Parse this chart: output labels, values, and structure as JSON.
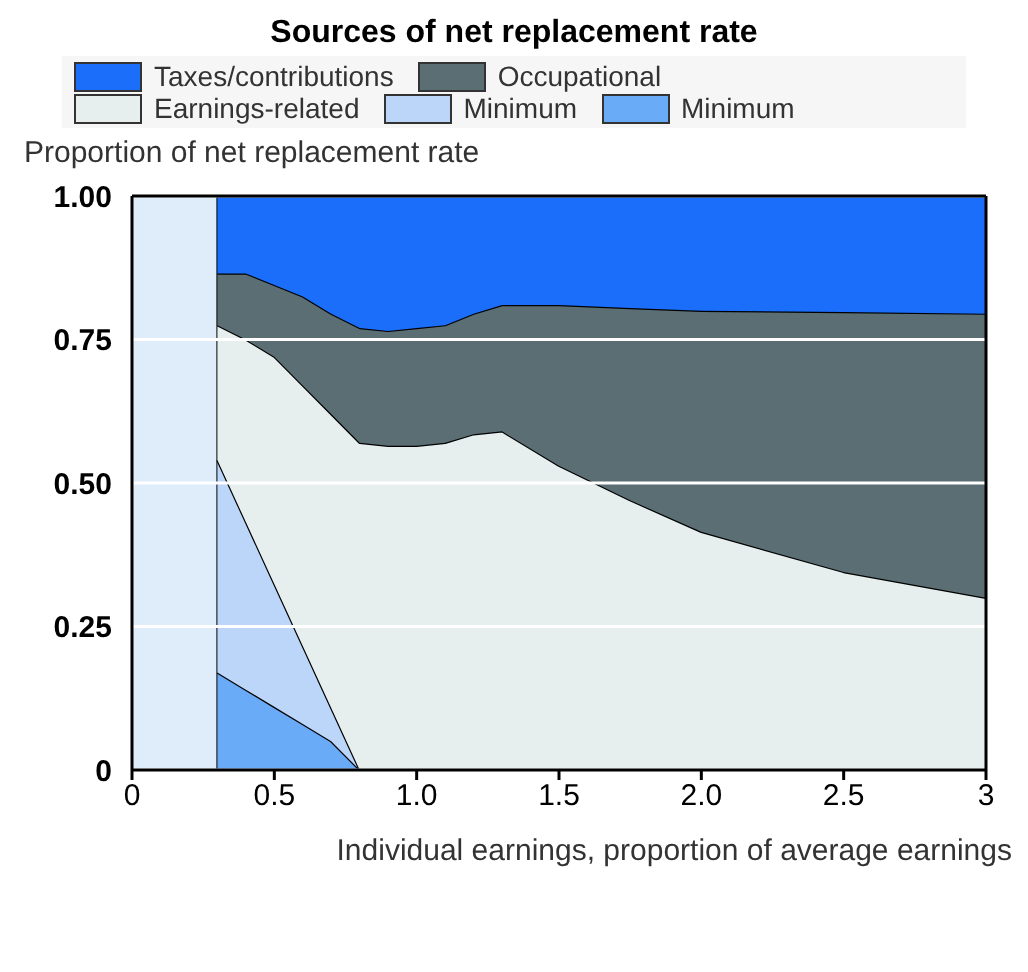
{
  "chart_data": {
    "type": "area",
    "stacked": true,
    "title": "Sources of net replacement rate",
    "ylabel": "Proportion of net replacement rate",
    "xlabel": "Individual earnings, proportion of average earnings",
    "x": [
      0.3,
      0.4,
      0.5,
      0.6,
      0.7,
      0.8,
      0.9,
      1.0,
      1.1,
      1.2,
      1.3,
      1.5,
      1.75,
      2.0,
      2.5,
      3.0
    ],
    "series": [
      {
        "name": "Minimum",
        "color": "#6aabf8",
        "values": [
          0.17,
          0.14,
          0.11,
          0.08,
          0.05,
          0,
          0,
          0,
          0,
          0,
          0,
          0,
          0,
          0,
          0,
          0
        ]
      },
      {
        "name": "Minimum",
        "color": "#bcd6fa",
        "values": [
          0.37,
          0.292,
          0.214,
          0.136,
          0.058,
          0,
          0,
          0,
          0,
          0,
          0,
          0,
          0,
          0,
          0,
          0
        ]
      },
      {
        "name": "Earnings-related",
        "color": "#e6eeee",
        "values": [
          0.235,
          0.318,
          0.396,
          0.454,
          0.512,
          0.57,
          0.565,
          0.565,
          0.57,
          0.585,
          0.59,
          0.53,
          0.47,
          0.415,
          0.345,
          0.3
        ]
      },
      {
        "name": "Occupational",
        "color": "#5b6e73",
        "values": [
          0.09,
          0.115,
          0.125,
          0.155,
          0.175,
          0.2,
          0.2,
          0.205,
          0.205,
          0.21,
          0.22,
          0.28,
          0.335,
          0.385,
          0.453,
          0.495
        ]
      },
      {
        "name": "Taxes/contributions",
        "color": "#1a6efa",
        "values": [
          0.135,
          0.135,
          0.155,
          0.175,
          0.205,
          0.23,
          0.235,
          0.23,
          0.225,
          0.205,
          0.19,
          0.19,
          0.195,
          0.2,
          0.202,
          0.205
        ]
      }
    ],
    "bands": [
      {
        "axis": "x",
        "from": 0,
        "to": 0.3,
        "color": "#dfecfa"
      }
    ],
    "xlim": [
      0,
      3
    ],
    "xticks": [
      0,
      0.5,
      {
        "value": 1,
        "label": "1.0"
      },
      1.5,
      {
        "value": 2,
        "label": "2.0"
      },
      2.5,
      3
    ],
    "ylim": [
      0,
      1
    ],
    "yticks": [
      0,
      0.25,
      {
        "value": 0.5,
        "label": "0.50"
      },
      0.75,
      {
        "value": 1,
        "label": "1.00"
      }
    ],
    "grid": "y",
    "legend": "top"
  }
}
